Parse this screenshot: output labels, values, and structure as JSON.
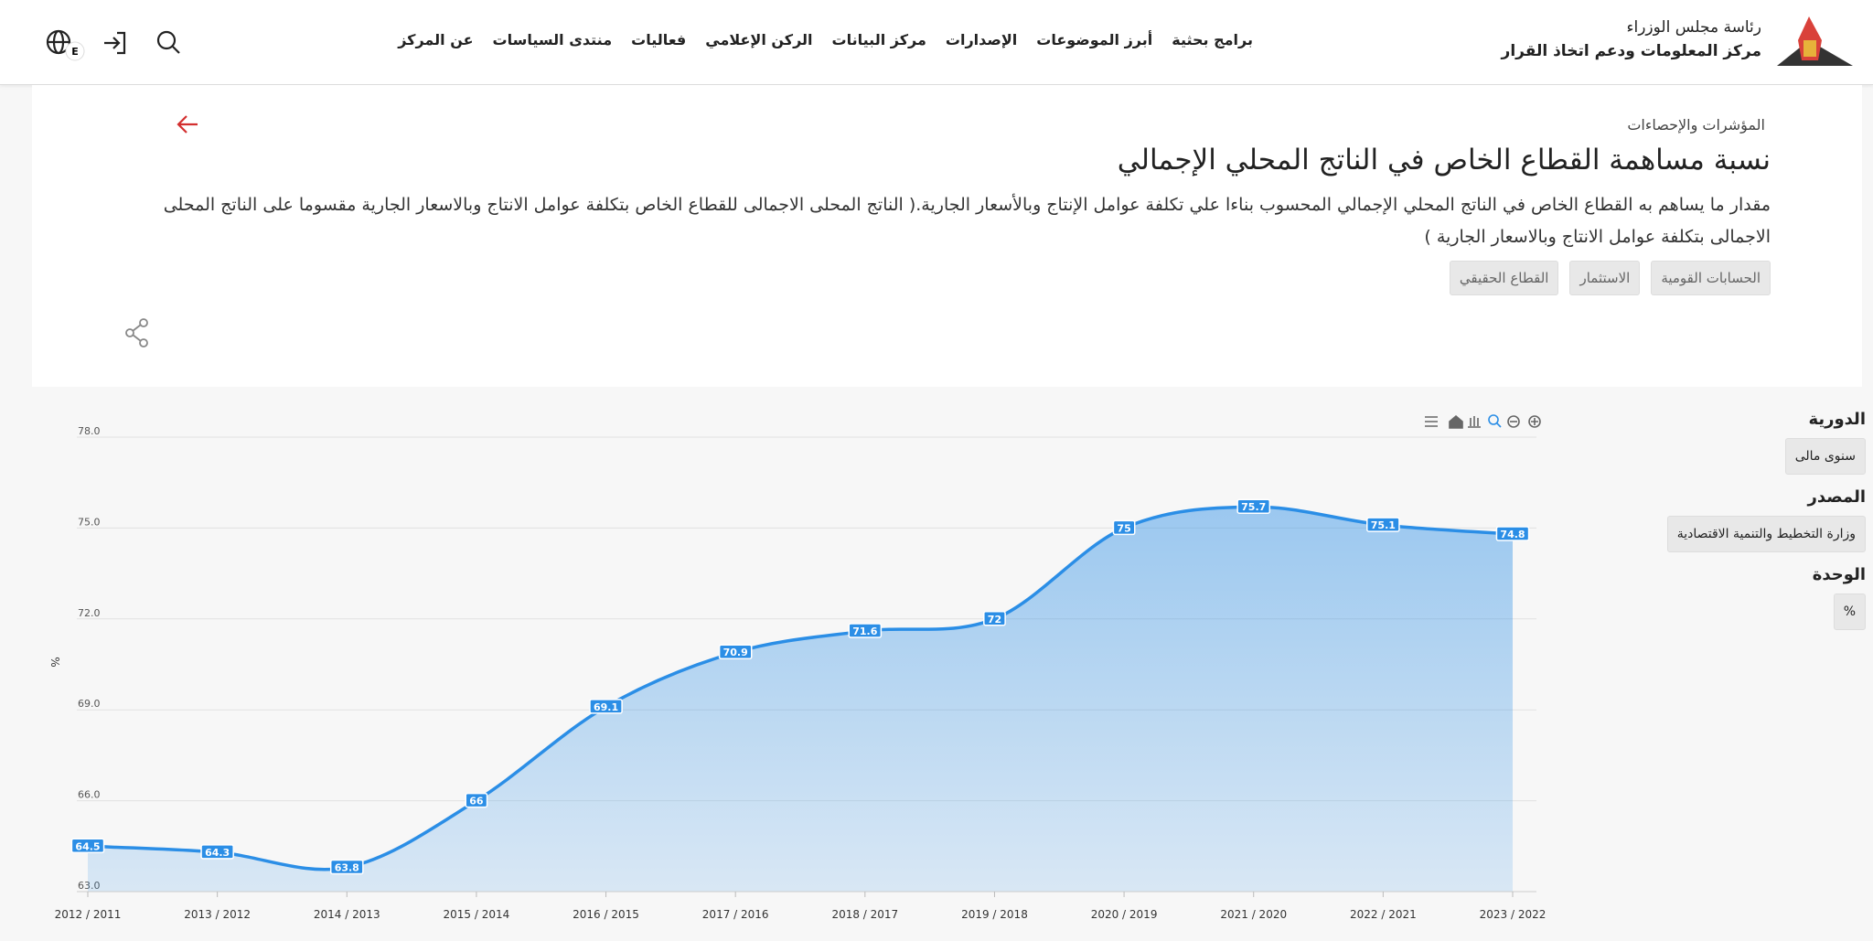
{
  "header": {
    "logo_line1": "رئاسة مجلس الوزراء",
    "logo_line2": "مركز المعلومات ودعم اتخاذ القرار",
    "nav": [
      "برامج بحثية",
      "أبرز الموضوعات",
      "الإصدارات",
      "مركز البيانات",
      "الركن الإعلامي",
      "فعاليات",
      "منتدى السياسات",
      "عن المركز"
    ],
    "lang_badge": "E"
  },
  "page": {
    "breadcrumb": "المؤشرات والإحصاءات",
    "title": "نسبة مساهمة القطاع الخاص في الناتج المحلي الإجمالي",
    "description": "مقدار ما يساهم به القطاع الخاص في الناتج المحلي الإجمالي المحسوب بناءا علي تكلفة عوامل الإنتاج وبالأسعار الجارية.( الناتج المحلى الاجمالى للقطاع الخاص بتكلفة عوامل الانتاج وبالاسعار الجارية مقسوما على الناتج المحلى الاجمالى بتكلفة عوامل الانتاج وبالاسعار الجارية )",
    "tags": [
      "الحسابات القومية",
      "الاستثمار",
      "القطاع الحقيقي"
    ]
  },
  "filters": [
    {
      "label": "الدورية",
      "value": "سنوى مالى"
    },
    {
      "label": "المصدر",
      "value": "وزارة التخطيط والتنمية الاقتصادية"
    },
    {
      "label": "الوحدة",
      "value": "%"
    }
  ],
  "chart_data": {
    "type": "area",
    "ylabel": "%",
    "categories": [
      "2012 / 2011",
      "2013 / 2012",
      "2014 / 2013",
      "2015 / 2014",
      "2016 / 2015",
      "2017 / 2016",
      "2018 / 2017",
      "2019 / 2018",
      "2020 / 2019",
      "2021 / 2020",
      "2022 / 2021",
      "2023 / 2022"
    ],
    "values": [
      64.5,
      64.3,
      63.8,
      66,
      69.1,
      70.9,
      71.6,
      72,
      75,
      75.7,
      75.1,
      74.8
    ],
    "color": "#2b8ee6",
    "ylim": [
      63,
      78
    ],
    "yticks": [
      {
        "value": 63,
        "label": "63.0"
      },
      {
        "value": 66,
        "label": "66.0"
      },
      {
        "value": 69,
        "label": "69.0"
      },
      {
        "value": 72,
        "label": "72.0"
      },
      {
        "value": 75,
        "label": "75.0"
      },
      {
        "value": 78,
        "label": "78.0"
      }
    ],
    "grid": true
  }
}
